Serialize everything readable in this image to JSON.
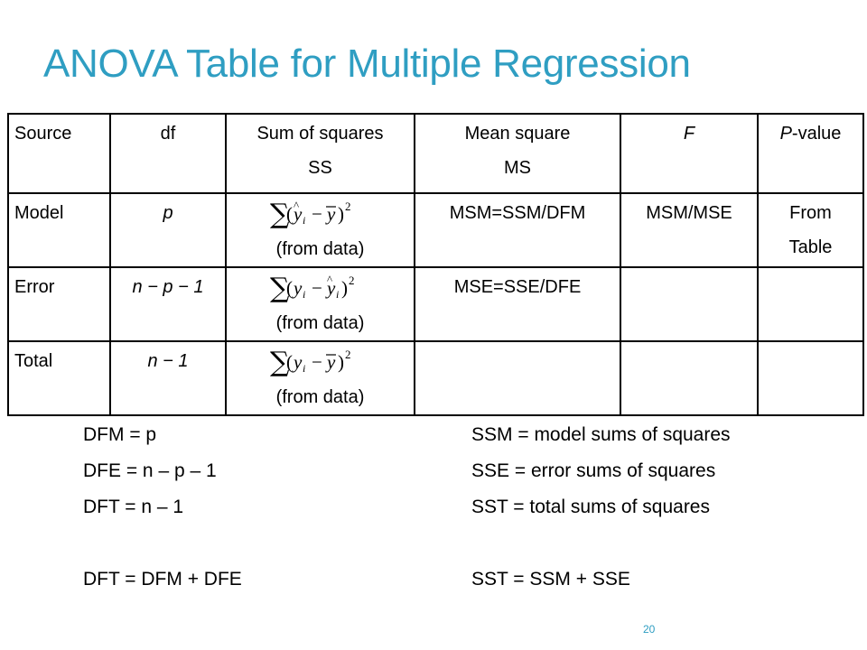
{
  "title": "ANOVA Table for Multiple Regression",
  "table": {
    "header": {
      "source": "Source",
      "df": "df",
      "ss_line1": "Sum of squares",
      "ss_line2": "SS",
      "ms_line1": "Mean square",
      "ms_line2": "MS",
      "f": "F",
      "p_italic": "P",
      "p_rest": "-value"
    },
    "rows": [
      {
        "source": "Model",
        "df": "p",
        "ss_note": "(from data)",
        "ms": "MSM=SSM/DFM",
        "f": "MSM/MSE",
        "p_line1": "From",
        "p_line2": "Table"
      },
      {
        "source": "Error",
        "df": "n − p − 1",
        "ss_note": "(from data)",
        "ms": "MSE=SSE/DFE",
        "f": "",
        "p_line1": "",
        "p_line2": ""
      },
      {
        "source": "Total",
        "df": "n − 1",
        "ss_note": "(from data)",
        "ms": "",
        "f": "",
        "p_line1": "",
        "p_line2": ""
      }
    ]
  },
  "notes": {
    "left": [
      "DFM = p",
      "DFE = n – p – 1",
      "DFT = n – 1",
      "",
      "DFT = DFM + DFE"
    ],
    "right": [
      "SSM = model sums of squares",
      "SSE = error sums of squares",
      "SST = total sums of squares",
      "",
      "SST = SSM + SSE"
    ]
  },
  "page_number": "20",
  "colors": {
    "title": "#2f9ec2",
    "page_number": "#2f9ec2",
    "border": "#000000"
  }
}
